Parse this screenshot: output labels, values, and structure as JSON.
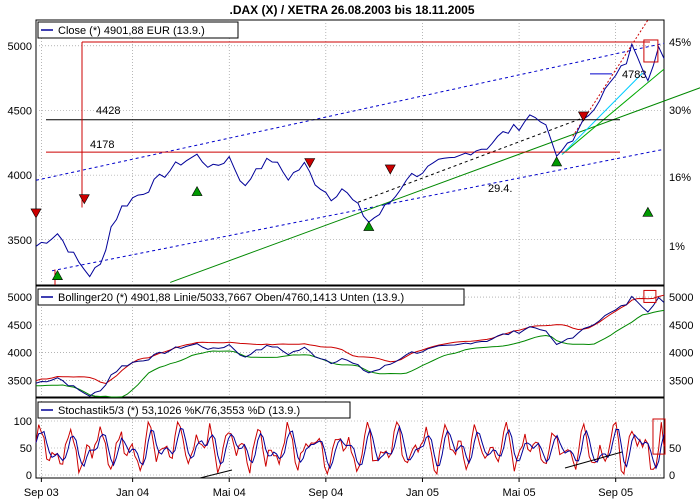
{
  "title": ".DAX (X) / XETRA 26.08.2003 bis 18.11.2005",
  "x_ticks": [
    "Sep 03",
    "Jan 04",
    "Mai 04",
    "Sep 04",
    "Jan 05",
    "Mai 05",
    "Sep 05"
  ],
  "chart_data": [
    {
      "type": "line",
      "panel": "price",
      "legend": "Close   (*) 4901,88 EUR (13.9.)",
      "ylim": [
        3150,
        5200
      ],
      "y_ticks_left": [
        3500,
        4000,
        4500,
        5000
      ],
      "y_ticks_right": [
        "1%",
        "16%",
        "30%",
        "45%"
      ],
      "y_ticks_right_values": [
        3450,
        3985,
        4505,
        5030
      ],
      "levels": [
        {
          "label": "4428",
          "value": 4428,
          "color": "#000000"
        },
        {
          "label": "4178",
          "value": 4178,
          "color": "#cc0000"
        },
        {
          "label": "4783",
          "value": 4783,
          "color": "#0000cc"
        }
      ],
      "annotations": [
        {
          "text": "29.4.",
          "color": "#cc0000"
        }
      ],
      "close_anchors": [
        [
          0,
          3450
        ],
        [
          4,
          3550
        ],
        [
          8,
          3320
        ],
        [
          10,
          3230
        ],
        [
          12,
          3300
        ],
        [
          14,
          3600
        ],
        [
          16,
          3750
        ],
        [
          18,
          3820
        ],
        [
          21,
          3900
        ],
        [
          24,
          4010
        ],
        [
          27,
          4100
        ],
        [
          30,
          4150
        ],
        [
          33,
          4050
        ],
        [
          36,
          4140
        ],
        [
          39,
          3900
        ],
        [
          41,
          4060
        ],
        [
          44,
          4120
        ],
        [
          47,
          3980
        ],
        [
          50,
          4080
        ],
        [
          52,
          3950
        ],
        [
          55,
          3830
        ],
        [
          57,
          3900
        ],
        [
          60,
          3750
        ],
        [
          62,
          3640
        ],
        [
          64,
          3700
        ],
        [
          67,
          3840
        ],
        [
          69,
          3980
        ],
        [
          72,
          4030
        ],
        [
          75,
          4090
        ],
        [
          78,
          4120
        ],
        [
          81,
          4190
        ],
        [
          84,
          4220
        ],
        [
          87,
          4320
        ],
        [
          90,
          4380
        ],
        [
          92,
          4460
        ],
        [
          94,
          4440
        ],
        [
          96,
          4270
        ],
        [
          97,
          4120
        ],
        [
          99,
          4250
        ],
        [
          101,
          4330
        ],
        [
          103,
          4480
        ],
        [
          105,
          4600
        ],
        [
          108,
          4760
        ],
        [
          110,
          4880
        ],
        [
          111,
          4990
        ],
        [
          112,
          4940
        ],
        [
          113,
          4850
        ],
        [
          114,
          4760
        ],
        [
          115,
          4880
        ],
        [
          116,
          4990
        ],
        [
          117,
          4901.88
        ]
      ],
      "down_markers": [
        [
          0,
          3700
        ],
        [
          9,
          3810
        ],
        [
          51,
          4090
        ],
        [
          66,
          4040
        ],
        [
          102,
          4450
        ]
      ],
      "up_markers": [
        [
          4,
          3230
        ],
        [
          30,
          3880
        ],
        [
          62,
          3610
        ],
        [
          97,
          4110
        ],
        [
          114,
          3720
        ]
      ]
    },
    {
      "type": "line",
      "panel": "bollinger",
      "legend": "Bollinger20 (*) 4901,88 Linie/5033,7667 Oben/4760,1413 Unten (13.9.)",
      "ylim": [
        3200,
        5200
      ],
      "y_ticks": [
        3500,
        4000,
        4500,
        5000
      ],
      "series": [
        {
          "name": "Linie",
          "value": 4901.88,
          "color": "#000080"
        },
        {
          "name": "Oben",
          "value": 5033.7667,
          "color": "#cc0000"
        },
        {
          "name": "Unten",
          "value": 4760.1413,
          "color": "#008800"
        }
      ]
    },
    {
      "type": "line",
      "panel": "stochastic",
      "legend": "Stochastik5/3 (*) 53,1026 %K/76,3553 %D (13.9.)",
      "ylim": [
        0,
        100
      ],
      "y_ticks": [
        0,
        50,
        100
      ],
      "y_tick_labels": [
        "0",
        "50",
        "100"
      ],
      "series": [
        {
          "name": "%K",
          "value": 53.1026,
          "color": "#cc0000"
        },
        {
          "name": "%D",
          "value": 76.3553,
          "color": "#000099"
        }
      ]
    }
  ]
}
